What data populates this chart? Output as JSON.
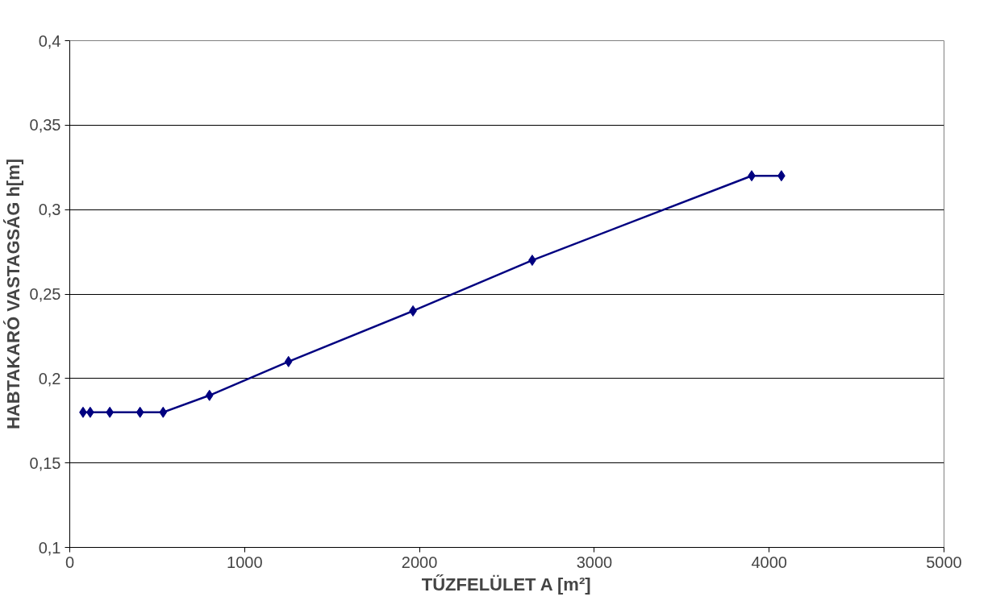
{
  "chart_data": {
    "type": "line",
    "xlabel": "TŰZFELÜLET A [m²]",
    "ylabel": "HABTAKARÓ VASTAGSÁG h[m]",
    "x": [
      76,
      117,
      229,
      402,
      534,
      799,
      1251,
      1963,
      2645,
      3900,
      4070
    ],
    "series": [
      {
        "color": "#000080",
        "values": [
          0.18,
          0.18,
          0.18,
          0.18,
          0.18,
          0.19,
          0.21,
          0.24,
          0.27,
          0.32,
          0.32
        ]
      }
    ],
    "xlim": [
      0,
      5000
    ],
    "xticks": [
      0,
      1000,
      2000,
      3000,
      4000,
      5000
    ],
    "ylim": [
      0.1,
      0.4
    ],
    "yticks": [
      {
        "value": 0.1,
        "label": "0,1"
      },
      {
        "value": 0.15,
        "label": "0,15"
      },
      {
        "value": 0.2,
        "label": "0,2"
      },
      {
        "value": 0.25,
        "label": "0,25"
      },
      {
        "value": 0.3,
        "label": "0,3"
      },
      {
        "value": 0.35,
        "label": "0,35"
      },
      {
        "value": 0.4,
        "label": "0,4"
      }
    ],
    "grid": "y",
    "marker": "diamond",
    "line_style": "solid"
  }
}
